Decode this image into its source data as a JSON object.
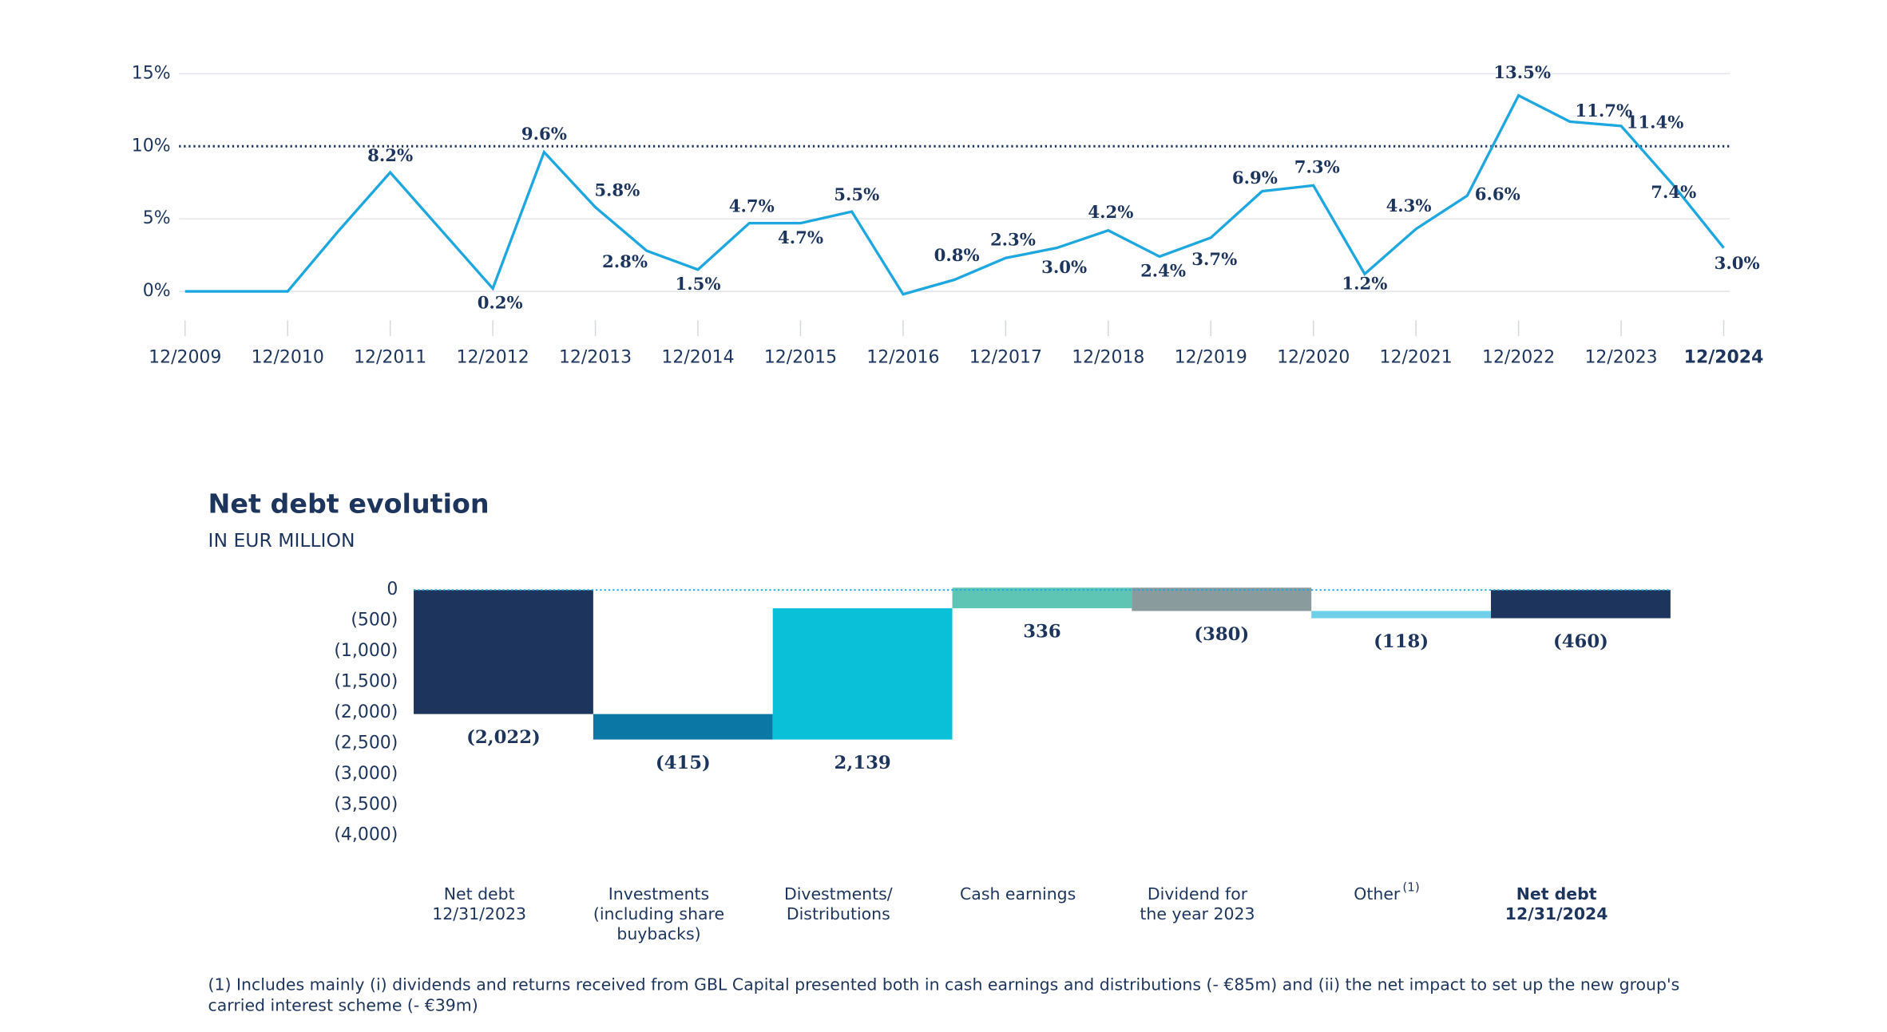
{
  "chart_data": [
    {
      "type": "line",
      "x": [
        2009,
        2010,
        2010.5,
        2011,
        2012,
        2012.5,
        2013,
        2013.5,
        2014,
        2014.5,
        2015,
        2015.5,
        2016,
        2016.5,
        2017,
        2017.5,
        2018,
        2018.5,
        2019,
        2019.5,
        2020,
        2020.5,
        2021,
        2021.5,
        2022,
        2022.5,
        2023,
        2023.5,
        2024
      ],
      "values": [
        0,
        0,
        4.2,
        8.2,
        0.2,
        9.6,
        5.8,
        2.8,
        1.5,
        4.7,
        4.7,
        5.5,
        -0.2,
        0.8,
        2.3,
        3.0,
        4.2,
        2.4,
        3.7,
        6.9,
        7.3,
        1.2,
        4.3,
        6.6,
        13.5,
        11.7,
        11.4,
        7.4,
        3.0
      ],
      "value_labels": [
        null,
        null,
        null,
        "8.2%",
        "0.2%",
        "9.6%",
        "5.8%",
        "2.8%",
        "1.5%",
        "4.7%",
        "4.7%",
        "5.5%",
        null,
        "0.8%",
        "2.3%",
        "3.0%",
        "4.2%",
        "2.4%",
        "3.7%",
        "6.9%",
        "7.3%",
        "1.2%",
        "4.3%",
        "6.6%",
        "13.5%",
        "11.7%",
        "11.4%",
        "7.4%",
        "3.0%"
      ],
      "color": "#1ea7df",
      "xlim": [
        2009,
        2024
      ],
      "xticks": [
        {
          "value": 2009,
          "label": "12/2009"
        },
        {
          "value": 2010,
          "label": "12/2010"
        },
        {
          "value": 2011,
          "label": "12/2011"
        },
        {
          "value": 2012,
          "label": "12/2012"
        },
        {
          "value": 2013,
          "label": "12/2013"
        },
        {
          "value": 2014,
          "label": "12/2014"
        },
        {
          "value": 2015,
          "label": "12/2015"
        },
        {
          "value": 2016,
          "label": "12/2016"
        },
        {
          "value": 2017,
          "label": "12/2017"
        },
        {
          "value": 2018,
          "label": "12/2018"
        },
        {
          "value": 2019,
          "label": "12/2019"
        },
        {
          "value": 2020,
          "label": "12/2020"
        },
        {
          "value": 2021,
          "label": "12/2021"
        },
        {
          "value": 2022,
          "label": "12/2022"
        },
        {
          "value": 2023,
          "label": "12/2023"
        },
        {
          "value": 2024,
          "label": "12/2024"
        }
      ],
      "ylim": [
        -3,
        15
      ],
      "yticks": [
        {
          "value": 0,
          "label": "0%"
        },
        {
          "value": 5,
          "label": "5%"
        },
        {
          "value": 10,
          "label": "10%"
        },
        {
          "value": 15,
          "label": "15%"
        }
      ],
      "grid": true,
      "reference_line": 10,
      "bold_last_tick": true
    },
    {
      "type": "waterfall",
      "title": "Net debt evolution",
      "subtitle": "IN EUR MILLION",
      "categories": [
        "Net debt\n12/31/2023",
        "Investments\n(including share\nbuybacks)",
        "Divestments/\nDistributions",
        "Cash earnings",
        "Dividend for\nthe year 2023",
        "Other",
        "Net debt\n12/31/2024"
      ],
      "category_notes": [
        null,
        null,
        null,
        null,
        null,
        "(1)",
        null
      ],
      "values": [
        -2022,
        -415,
        2139,
        336,
        -380,
        -118,
        -460
      ],
      "value_labels": [
        "(2,022)",
        "(415)",
        "2,139",
        "336",
        "(380)",
        "(118)",
        "(460)"
      ],
      "totals": [
        true,
        false,
        false,
        false,
        false,
        false,
        true
      ],
      "colors": [
        "#1d355d",
        "#0b77a5",
        "#0abfd8",
        "#5ec4b4",
        "#899b9c",
        "#6fcfe8",
        "#1d355d"
      ],
      "ylim": [
        -4000,
        0
      ],
      "yticks": [
        0,
        {
          "value": -500,
          "label": "(500)"
        },
        {
          "value": -1000,
          "label": "(1,000)"
        },
        {
          "value": -1500,
          "label": "(1,500)"
        },
        {
          "value": -2000,
          "label": "(2,000)"
        },
        {
          "value": -2500,
          "label": "(2,500)"
        },
        {
          "value": -3000,
          "label": "(3,000)"
        },
        {
          "value": -3500,
          "label": "(3,500)"
        },
        {
          "value": -4000,
          "label": "(4,000)"
        }
      ],
      "zero_line": true,
      "highlight_last": true,
      "footnote": "(1) Includes mainly (i) dividends and returns received from GBL Capital presented both in cash earnings and distributions (- €85m) and (ii) the net impact to set up the new group's carried interest scheme (- €39m)"
    }
  ]
}
